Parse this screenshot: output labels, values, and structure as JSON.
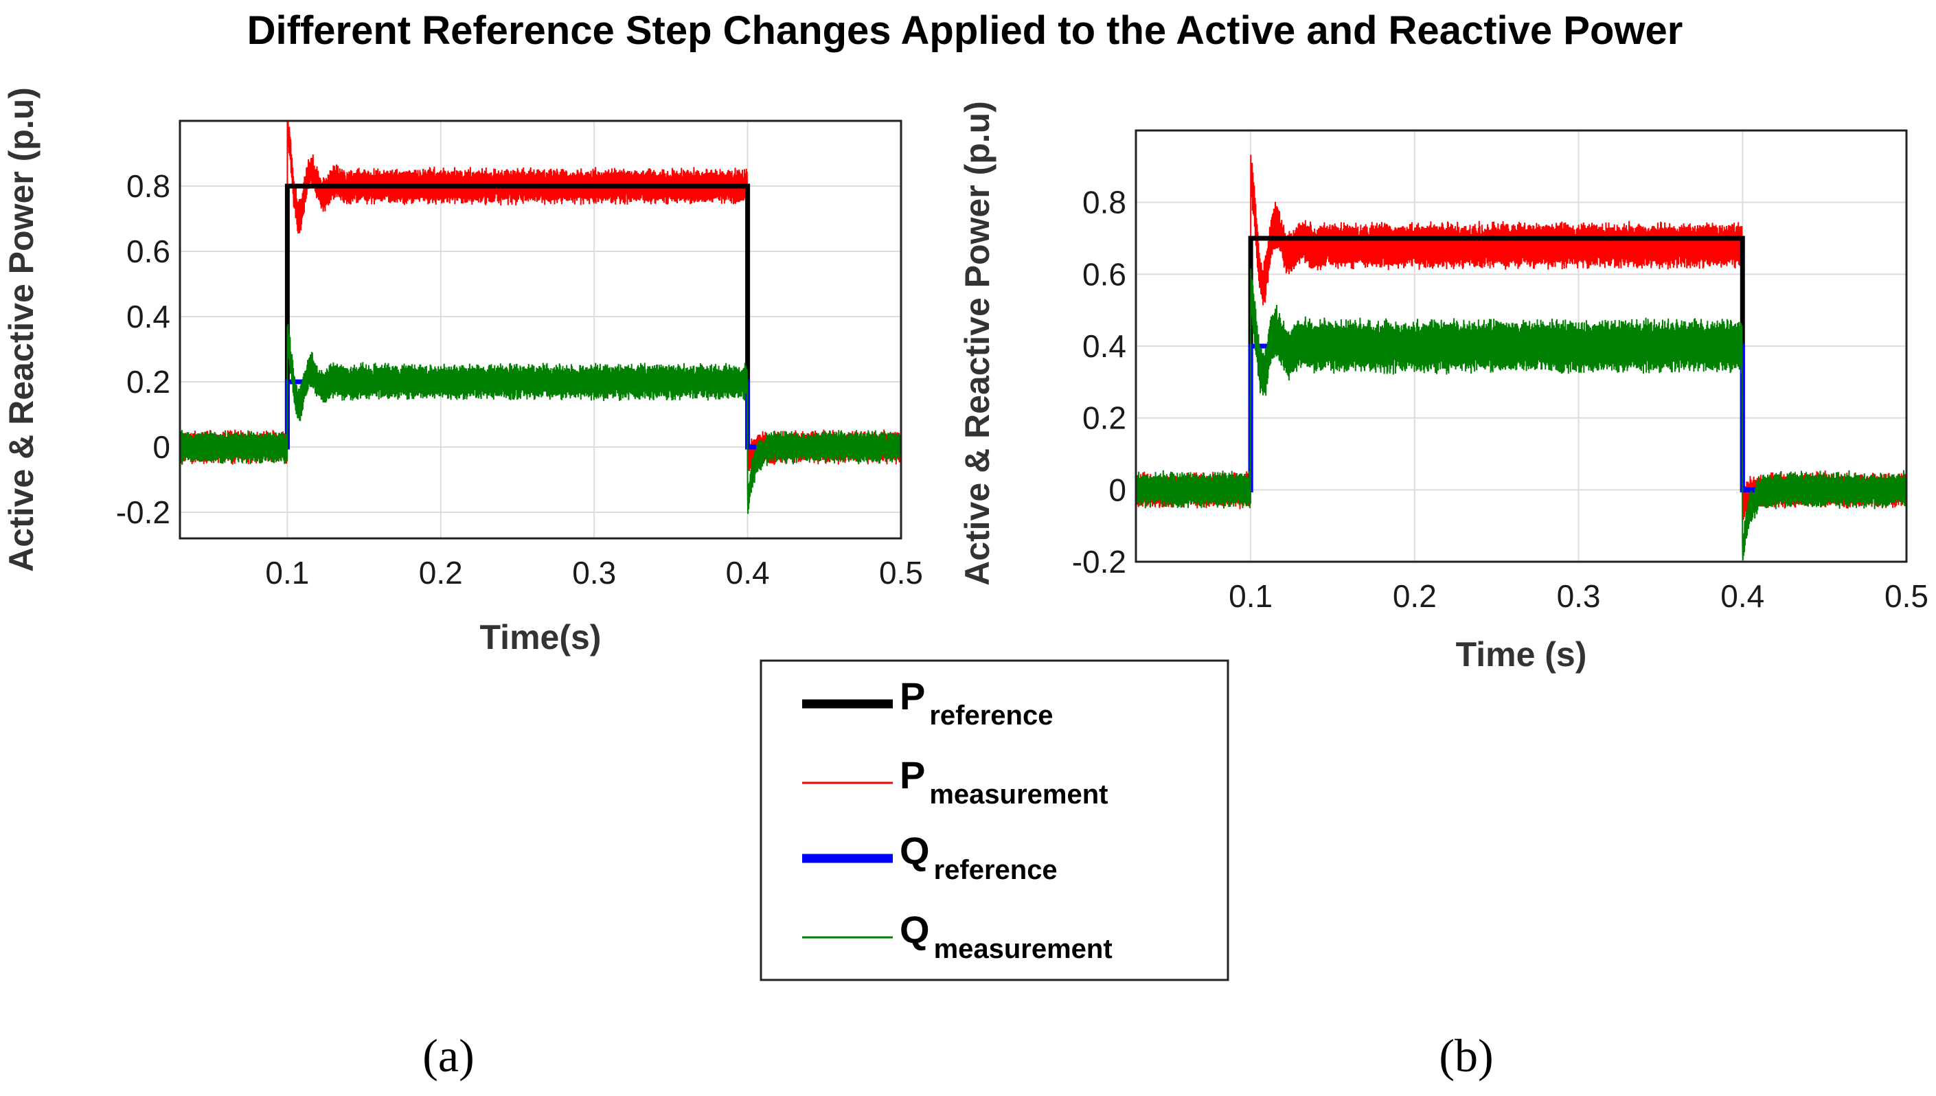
{
  "figure": {
    "title": "Different Reference Step Changes Applied to the Active and Reactive Power"
  },
  "legend": {
    "entries": [
      {
        "main": "P",
        "sub": "reference",
        "color": "#000000",
        "line": "thick"
      },
      {
        "main": "P",
        "sub": "measurement",
        "color": "#ff0000",
        "line": "thin"
      },
      {
        "main": "Q",
        "sub": "reference",
        "color": "#0000ff",
        "line": "thick"
      },
      {
        "main": "Q",
        "sub": "measurement",
        "color": "#008000",
        "line": "thin"
      }
    ]
  },
  "chart_data": [
    {
      "type": "line",
      "panel": "(a)",
      "xlabel": "Time(s)",
      "ylabel": "Active & Reactive Power (p.u)",
      "xlim": [
        0.03,
        0.5
      ],
      "ylim": [
        -0.28,
        1.0
      ],
      "xticks": [
        0.1,
        0.2,
        0.3,
        0.4,
        0.5
      ],
      "xtick_labels": [
        "0.1",
        "0.2",
        "0.3",
        "0.4",
        "0.5"
      ],
      "yticks": [
        -0.2,
        0,
        0.2,
        0.4,
        0.6,
        0.8
      ],
      "ytick_labels": [
        "-0.2",
        "0",
        "0.2",
        "0.4",
        "0.6",
        "0.8"
      ],
      "grid": true,
      "step_on": 0.1,
      "step_off": 0.4,
      "series": [
        {
          "name": "P reference",
          "color": "#000000",
          "before": 0.0,
          "during": 0.8,
          "after": 0.0
        },
        {
          "name": "P measurement",
          "color": "#ff0000",
          "before": 0.0,
          "during": 0.8,
          "after": 0.0,
          "ripple": 0.05,
          "overshoot": 0.98
        },
        {
          "name": "Q reference",
          "color": "#0000ff",
          "before": 0.0,
          "during": 0.2,
          "after": 0.0
        },
        {
          "name": "Q measurement",
          "color": "#008000",
          "before": 0.0,
          "during": 0.2,
          "after": 0.0,
          "ripple": 0.05,
          "overshoot": 0.33
        }
      ]
    },
    {
      "type": "line",
      "panel": "(b)",
      "xlabel": "Time (s)",
      "ylabel": "Active & Reactive Power (p.u)",
      "xlim": [
        0.03,
        0.5
      ],
      "ylim": [
        -0.2,
        1.0
      ],
      "xticks": [
        0.1,
        0.2,
        0.3,
        0.4,
        0.5
      ],
      "xtick_labels": [
        "0.1",
        "0.2",
        "0.3",
        "0.4",
        "0.5"
      ],
      "yticks": [
        -0.2,
        0,
        0.2,
        0.4,
        0.6,
        0.8
      ],
      "ytick_labels": [
        "-0.2",
        "0",
        "0.2",
        "0.4",
        "0.6",
        "0.8"
      ],
      "grid": true,
      "step_on": 0.1,
      "step_off": 0.4,
      "series": [
        {
          "name": "P reference",
          "color": "#000000",
          "before": 0.0,
          "during": 0.7,
          "after": 0.0
        },
        {
          "name": "P measurement",
          "color": "#ff0000",
          "before": 0.0,
          "during": 0.68,
          "after": 0.0,
          "ripple": 0.06,
          "overshoot": 0.88
        },
        {
          "name": "Q reference",
          "color": "#0000ff",
          "before": 0.0,
          "during": 0.4,
          "after": 0.0
        },
        {
          "name": "Q measurement",
          "color": "#008000",
          "before": 0.0,
          "during": 0.4,
          "after": 0.0,
          "ripple": 0.07,
          "overshoot": 0.55
        }
      ]
    }
  ]
}
